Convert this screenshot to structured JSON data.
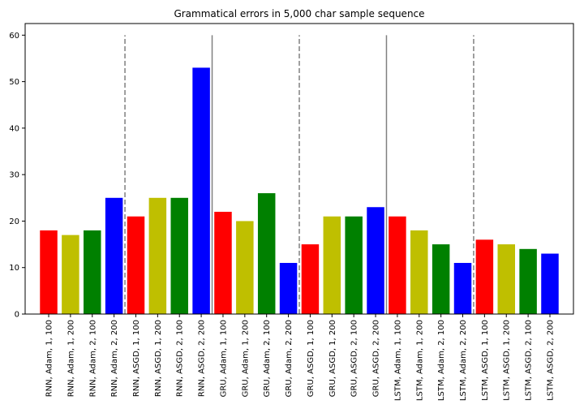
{
  "chart_data": {
    "type": "bar",
    "title": "Grammatical errors in 5,000 char sample sequence",
    "xlabel": "",
    "ylabel": "",
    "ylim": [
      0,
      62.5
    ],
    "yticks": [
      0,
      10,
      20,
      30,
      40,
      50,
      60
    ],
    "grid": false,
    "categories": [
      "RNN, Adam, 1, 100",
      "RNN, Adam, 1, 200",
      "RNN, Adam, 2, 100",
      "RNN, Adam, 2, 200",
      "RNN, ASGD, 1, 100",
      "RNN, ASGD, 1, 200",
      "RNN, ASGD, 2, 100",
      "RNN, ASGD, 2, 200",
      "GRU, Adam, 1, 100",
      "GRU, Adam, 1, 200",
      "GRU, Adam, 2, 100",
      "GRU, Adam, 2, 200",
      "GRU, ASGD, 1, 100",
      "GRU, ASGD, 1, 200",
      "GRU, ASGD, 2, 100",
      "GRU, ASGD, 2, 200",
      "LSTM, Adam, 1, 100",
      "LSTM, Adam, 1, 200",
      "LSTM, Adam, 2, 100",
      "LSTM, Adam, 2, 200",
      "LSTM, ASGD, 1, 100",
      "LSTM, ASGD, 1, 200",
      "LSTM, ASGD, 2, 100",
      "LSTM, ASGD, 2, 200"
    ],
    "values": [
      18,
      17,
      18,
      25,
      21,
      25,
      25,
      53,
      22,
      20,
      26,
      11,
      15,
      21,
      21,
      23,
      21,
      18,
      15,
      11,
      16,
      15,
      14,
      13
    ],
    "bar_colors": [
      "#ff0000",
      "#bfbf00",
      "#008000",
      "#0000ff"
    ],
    "separators": [
      {
        "after_index": 3,
        "style": "dashed"
      },
      {
        "after_index": 7,
        "style": "solid"
      },
      {
        "after_index": 11,
        "style": "dashed"
      },
      {
        "after_index": 15,
        "style": "solid"
      },
      {
        "after_index": 19,
        "style": "dashed"
      }
    ],
    "separator_top_value": 60,
    "separator_color": "#808080"
  }
}
